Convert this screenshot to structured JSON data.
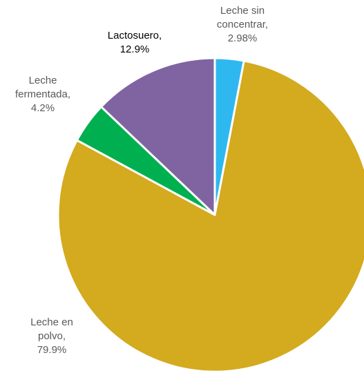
{
  "chart_data": {
    "type": "pie",
    "title": "",
    "start": "12 o'clock",
    "direction": "clockwise",
    "slices": [
      {
        "label": "Leche sin concentrar",
        "value": 2.98,
        "color": "#2FB8F0",
        "label_lines": [
          "Leche sin",
          "concentrar,",
          "2.98%"
        ],
        "label_color": "#595959"
      },
      {
        "label": "Leche en polvo",
        "value": 79.9,
        "color": "#D4AA1E",
        "label_lines": [
          "Leche en",
          "polvo,",
          "79.9%"
        ],
        "label_color": "#595959"
      },
      {
        "label": "Leche fermentada",
        "value": 4.2,
        "color": "#00B050",
        "label_lines": [
          "Leche",
          "fermentada,",
          "4.2%"
        ],
        "label_color": "#595959"
      },
      {
        "label": "Lactosuero",
        "value": 12.9,
        "color": "#8064A2",
        "label_lines": [
          "Lactosuero,",
          "12.9%"
        ],
        "label_color": "#000000"
      }
    ]
  }
}
